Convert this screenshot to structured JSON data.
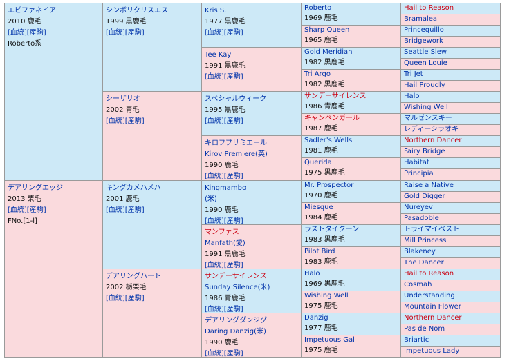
{
  "colors": {
    "sire_side": "#cde9f7",
    "dam_side": "#fadadd",
    "link": "#0033aa",
    "highlight": "#cc0011"
  },
  "gen1": [
    {
      "name": "エピファネイア",
      "lines": [
        "2010 鹿毛",
        "[血統][産駒]",
        "Roberto系"
      ],
      "side": "m"
    },
    {
      "name": "デアリングエッジ",
      "lines": [
        "2013 栗毛",
        "[血統][産駒]",
        "FNo.[1-l]"
      ],
      "side": "f"
    }
  ],
  "gen2": [
    {
      "name": "シンボリクリスエス",
      "lines": [
        "1999 黒鹿毛",
        "[血統][産駒]"
      ],
      "side": "m"
    },
    {
      "name": "シーザリオ",
      "lines": [
        "2002 青毛",
        "[血統][産駒]"
      ],
      "side": "f"
    },
    {
      "name": "キングカメハメハ",
      "lines": [
        "2001 鹿毛",
        "[血統][産駒]"
      ],
      "side": "m"
    },
    {
      "name": "デアリングハート",
      "lines": [
        "2002 栃栗毛",
        "[血統][産駒]"
      ],
      "side": "f"
    }
  ],
  "gen3": [
    {
      "name": "Kris S.",
      "lines": [
        "1977 黒鹿毛",
        "[血統][産駒]"
      ],
      "side": "m"
    },
    {
      "name": "Tee Kay",
      "lines": [
        "1991 黒鹿毛",
        "[血統][産駒]"
      ],
      "side": "f"
    },
    {
      "name": "スペシャルウィーク",
      "lines": [
        "1995 黒鹿毛",
        "[血統][産駒]"
      ],
      "side": "m"
    },
    {
      "name": "キロフプリミエール",
      "sub": "Kirov Premiere(英)",
      "lines": [
        "1990 鹿毛",
        "[血統][産駒]"
      ],
      "side": "f"
    },
    {
      "name": "Kingmambo",
      "sub": "(米)",
      "lines": [
        "1990 鹿毛",
        "[血統][産駒]"
      ],
      "side": "m"
    },
    {
      "name": "マンファス",
      "sub": "Manfath(愛)",
      "lines": [
        "1991 黒鹿毛",
        "[血統][産駒]"
      ],
      "side": "f",
      "red": true
    },
    {
      "name": "サンデーサイレンス",
      "sub": "Sunday Silence(米)",
      "lines": [
        "1986 青鹿毛",
        "[血統][産駒]"
      ],
      "side": "m",
      "red": true
    },
    {
      "name": "デアリングダンジグ",
      "sub": "Daring Danzig(米)",
      "lines": [
        "1990 鹿毛",
        "[血統][産駒]"
      ],
      "side": "f"
    }
  ],
  "gen4": [
    {
      "name": "Roberto",
      "year": "1969 鹿毛",
      "side": "m"
    },
    {
      "name": "Sharp Queen",
      "year": "1965 鹿毛",
      "side": "f"
    },
    {
      "name": "Gold Meridian",
      "year": "1982 黒鹿毛",
      "side": "m"
    },
    {
      "name": "Tri Argo",
      "year": "1982 黒鹿毛",
      "side": "f"
    },
    {
      "name": "サンデーサイレンス",
      "year": "1986 青鹿毛",
      "side": "m",
      "red": true
    },
    {
      "name": "キャンペンガール",
      "year": "1987 鹿毛",
      "side": "f",
      "red": true
    },
    {
      "name": "Sadler's Wells",
      "year": "1981 鹿毛",
      "side": "m"
    },
    {
      "name": "Querida",
      "year": "1975 黒鹿毛",
      "side": "f"
    },
    {
      "name": "Mr. Prospector",
      "year": "1970 鹿毛",
      "side": "m"
    },
    {
      "name": "Miesque",
      "year": "1984 鹿毛",
      "side": "f"
    },
    {
      "name": "ラストタイクーン",
      "year": "1983 黒鹿毛",
      "side": "m"
    },
    {
      "name": "Pilot Bird",
      "year": "1983 鹿毛",
      "side": "f"
    },
    {
      "name": "Halo",
      "year": "1969 黒鹿毛",
      "side": "m"
    },
    {
      "name": "Wishing Well",
      "year": "1975 鹿毛",
      "side": "f"
    },
    {
      "name": "Danzig",
      "year": "1977 鹿毛",
      "side": "m"
    },
    {
      "name": "Impetuous Gal",
      "year": "1975 鹿毛",
      "side": "f"
    }
  ],
  "gen5": [
    {
      "name": "Hail to Reason",
      "side": "m",
      "red": true
    },
    {
      "name": "Bramalea",
      "side": "f"
    },
    {
      "name": "Princequillo",
      "side": "m"
    },
    {
      "name": "Bridgework",
      "side": "f"
    },
    {
      "name": "Seattle Slew",
      "side": "m"
    },
    {
      "name": "Queen Louie",
      "side": "f"
    },
    {
      "name": "Tri Jet",
      "side": "m"
    },
    {
      "name": "Hail Proudly",
      "side": "f"
    },
    {
      "name": "Halo",
      "side": "m"
    },
    {
      "name": "Wishing Well",
      "side": "f"
    },
    {
      "name": "マルゼンスキー",
      "side": "m"
    },
    {
      "name": "レディーシラオキ",
      "side": "f"
    },
    {
      "name": "Northern Dancer",
      "side": "m",
      "red": true
    },
    {
      "name": "Fairy Bridge",
      "side": "f"
    },
    {
      "name": "Habitat",
      "side": "m"
    },
    {
      "name": "Principia",
      "side": "f"
    },
    {
      "name": "Raise a Native",
      "side": "m"
    },
    {
      "name": "Gold Digger",
      "side": "f"
    },
    {
      "name": "Nureyev",
      "side": "m"
    },
    {
      "name": "Pasadoble",
      "side": "f"
    },
    {
      "name": "トライマイベスト",
      "side": "m"
    },
    {
      "name": "Mill Princess",
      "side": "f"
    },
    {
      "name": "Blakeney",
      "side": "m"
    },
    {
      "name": "The Dancer",
      "side": "f"
    },
    {
      "name": "Hail to Reason",
      "side": "m",
      "red": true
    },
    {
      "name": "Cosmah",
      "side": "f"
    },
    {
      "name": "Understanding",
      "side": "m"
    },
    {
      "name": "Mountain Flower",
      "side": "f"
    },
    {
      "name": "Northern Dancer",
      "side": "m",
      "red": true
    },
    {
      "name": "Pas de Nom",
      "side": "f"
    },
    {
      "name": "Briartic",
      "side": "m"
    },
    {
      "name": "Impetuous Lady",
      "side": "f"
    }
  ]
}
